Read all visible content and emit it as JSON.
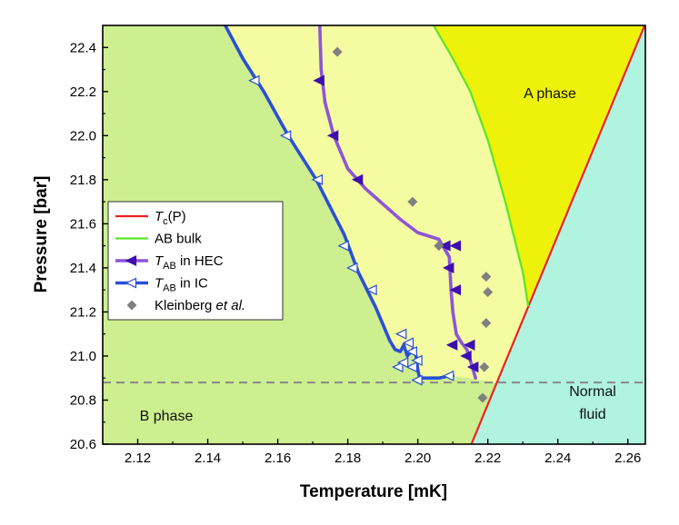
{
  "chart_data": {
    "type": "line",
    "xlabel": "Temperature [mK]",
    "ylabel": "Pressure [bar]",
    "xlim": [
      2.11,
      2.265
    ],
    "ylim": [
      20.6,
      22.5
    ],
    "xticks": [
      "2.12",
      "2.14",
      "2.16",
      "2.18",
      "2.20",
      "2.22",
      "2.24",
      "2.26"
    ],
    "yticks": [
      "20.6",
      "20.8",
      "21.0",
      "21.2",
      "21.4",
      "21.6",
      "21.8",
      "22.0",
      "22.2",
      "22.4"
    ],
    "xtick_values": [
      2.12,
      2.14,
      2.16,
      2.18,
      2.2,
      2.22,
      2.24,
      2.26
    ],
    "ytick_values": [
      20.6,
      20.8,
      21.0,
      21.2,
      21.4,
      21.6,
      21.8,
      22.0,
      22.2,
      22.4
    ],
    "regions": {
      "b_phase": {
        "label": "B phase",
        "color": "#cdef8f"
      },
      "ic_metastable": {
        "color": "#f5fba0"
      },
      "a_phase": {
        "label": "A phase",
        "color": "#eef20a"
      },
      "normal": {
        "label_line1": "Normal",
        "label_line2": "fluid",
        "color": "#b0f3df"
      }
    },
    "dashed_line": {
      "pressure": 20.88,
      "color": "#888888"
    },
    "legend": {
      "placement": "center-left",
      "entries": [
        {
          "label": "T",
          "sub": "c",
          "suffix": "(P)",
          "italic": true,
          "color": "#ef2020",
          "marker": "none"
        },
        {
          "label": "AB bulk",
          "sub": "",
          "suffix": "",
          "italic": false,
          "color": "#59e62a",
          "marker": "none"
        },
        {
          "label": "T",
          "sub": "AB",
          "suffix": " in HEC",
          "italic": true,
          "color": "#8e55d8",
          "marker": "filled-left-triangle",
          "marker_color": "#3d0fb0"
        },
        {
          "label": "T",
          "sub": "AB",
          "suffix": " in IC",
          "italic": true,
          "color": "#2a50d6",
          "marker": "open-left-triangle",
          "marker_color": "#2a50d6"
        },
        {
          "label": "Kleinberg ",
          "sub": "",
          "suffix": "",
          "italic_tail": "et al.",
          "italic": false,
          "color": "#808080",
          "marker": "diamond"
        }
      ]
    },
    "series": [
      {
        "name": "Tc(P)",
        "color": "#ef2020",
        "x": [
          2.2153,
          2.2648
        ],
        "y": [
          20.6,
          22.5
        ]
      },
      {
        "name": "AB bulk",
        "color": "#59e62a",
        "x": [
          2.2045,
          2.21,
          2.215,
          2.22,
          2.225,
          2.23,
          2.2315
        ],
        "y": [
          22.5,
          22.35,
          22.2,
          21.98,
          21.7,
          21.38,
          21.23
        ]
      },
      {
        "name": "TAB in HEC",
        "color": "#8e55d8",
        "x": [
          2.172,
          2.1724,
          2.1735,
          2.176,
          2.18,
          2.185,
          2.19,
          2.195,
          2.2,
          2.206,
          2.209,
          2.2095,
          2.21,
          2.211,
          2.2125,
          2.214,
          2.215,
          2.2165
        ],
        "y": [
          22.5,
          22.3,
          22.15,
          22.0,
          21.85,
          21.76,
          21.69,
          21.62,
          21.56,
          21.53,
          21.45,
          21.3,
          21.2,
          21.1,
          21.06,
          21.03,
          20.98,
          20.9
        ],
        "markers": {
          "x": [
            2.172,
            2.176,
            2.183,
            2.208,
            2.211,
            2.209,
            2.211,
            2.21,
            2.215,
            2.214,
            2.216
          ],
          "y": [
            22.25,
            22.0,
            21.8,
            21.5,
            21.5,
            21.4,
            21.3,
            21.05,
            21.05,
            21.0,
            20.95
          ]
        }
      },
      {
        "name": "TAB in IC",
        "color": "#2a50d6",
        "x": [
          2.145,
          2.15,
          2.156,
          2.163,
          2.171,
          2.179,
          2.183,
          2.188,
          2.192,
          2.1935,
          2.195,
          2.196,
          2.197,
          2.1985,
          2.1995,
          2.2,
          2.2005,
          2.206,
          2.209,
          2.21
        ],
        "y": [
          22.5,
          22.35,
          22.2,
          22.0,
          21.8,
          21.55,
          21.38,
          21.22,
          21.07,
          21.03,
          21.02,
          21.05,
          21.0,
          21.03,
          21.0,
          20.94,
          20.9,
          20.9,
          20.91,
          20.91
        ],
        "markers": {
          "x": [
            2.1535,
            2.1625,
            2.1715,
            2.179,
            2.1815,
            2.187,
            2.1955,
            2.1975,
            2.1985,
            2.1945,
            2.196,
            2.1985,
            2.2,
            2.209,
            2.2
          ],
          "y": [
            22.25,
            22.0,
            21.8,
            21.5,
            21.4,
            21.3,
            21.1,
            21.06,
            21.02,
            20.95,
            20.97,
            20.95,
            20.98,
            20.91,
            20.89
          ]
        }
      },
      {
        "name": "Kleinberg et al.",
        "color": "#808080",
        "x": [
          2.177,
          2.1985,
          2.206,
          2.2195,
          2.22,
          2.2195,
          2.219,
          2.2185
        ],
        "y": [
          22.38,
          21.7,
          21.5,
          21.36,
          21.29,
          21.15,
          20.95,
          20.81
        ]
      }
    ],
    "annotations": {
      "a_phase": "A phase",
      "b_phase": "B phase",
      "normal_1": "Normal",
      "normal_2": "fluid"
    }
  }
}
